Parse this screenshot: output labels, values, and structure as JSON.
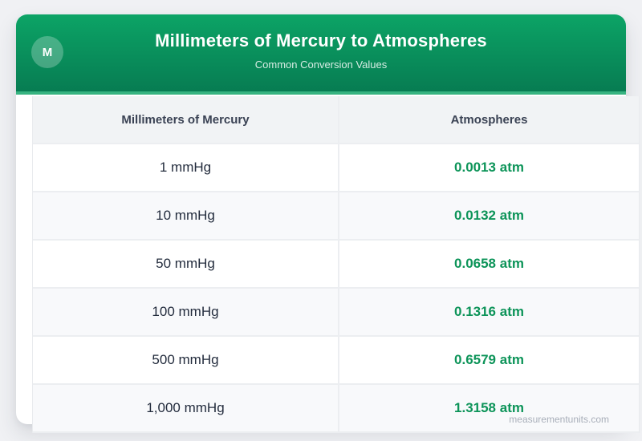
{
  "header": {
    "badge_letter": "M",
    "title": "Millimeters of Mercury to Atmospheres",
    "subtitle": "Common Conversion Values"
  },
  "table": {
    "columns": [
      "Millimeters of Mercury",
      "Atmospheres"
    ],
    "rows": [
      {
        "mmhg": "1 mmHg",
        "atm": "0.0013 atm"
      },
      {
        "mmhg": "10 mmHg",
        "atm": "0.0132 atm"
      },
      {
        "mmhg": "50 mmHg",
        "atm": "0.0658 atm"
      },
      {
        "mmhg": "100 mmHg",
        "atm": "0.1316 atm"
      },
      {
        "mmhg": "500 mmHg",
        "atm": "0.6579 atm"
      },
      {
        "mmhg": "1,000 mmHg",
        "atm": "1.3158 atm"
      }
    ]
  },
  "footer": {
    "watermark": "measurementunits.com"
  },
  "colors": {
    "header_gradient_top": "#0ca466",
    "header_gradient_bottom": "#077c52",
    "accent_green": "#0d9459",
    "table_header_bg": "#f1f3f5",
    "alt_row_bg": "#f8f9fb",
    "border": "#eceef1",
    "page_bg": "#f0f1f4"
  },
  "chart_data": {
    "type": "table",
    "title": "Millimeters of Mercury to Atmospheres",
    "subtitle": "Common Conversion Values",
    "columns": [
      "Millimeters of Mercury",
      "Atmospheres"
    ],
    "rows": [
      [
        "1 mmHg",
        "0.0013 atm"
      ],
      [
        "10 mmHg",
        "0.0132 atm"
      ],
      [
        "50 mmHg",
        "0.0658 atm"
      ],
      [
        "100 mmHg",
        "0.1316 atm"
      ],
      [
        "500 mmHg",
        "0.6579 atm"
      ],
      [
        "1,000 mmHg",
        "1.3158 atm"
      ]
    ],
    "mmhg_values": [
      1,
      10,
      50,
      100,
      500,
      1000
    ],
    "atm_values": [
      0.0013,
      0.0132,
      0.0658,
      0.1316,
      0.6579,
      1.3158
    ]
  }
}
